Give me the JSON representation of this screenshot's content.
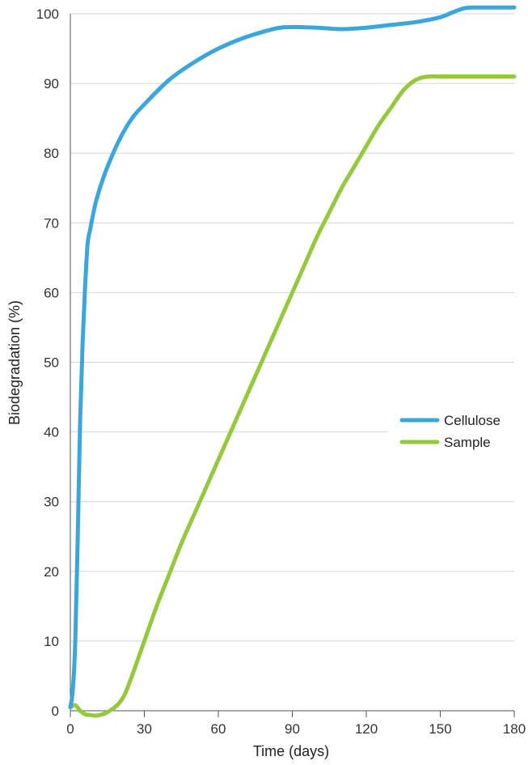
{
  "chart_data": {
    "type": "line",
    "title": "",
    "xlabel": "Time (days)",
    "ylabel": "Biodegradation (%)",
    "xlim": [
      0,
      180
    ],
    "ylim": [
      0,
      100
    ],
    "xticks": [
      0,
      30,
      60,
      90,
      120,
      150,
      180
    ],
    "yticks": [
      0,
      10,
      20,
      30,
      40,
      50,
      60,
      70,
      80,
      90,
      100
    ],
    "grid": "horizontal",
    "legend_position": "right",
    "series": [
      {
        "name": "Cellulose",
        "color": "#3aa6dc",
        "x": [
          0,
          1,
          2,
          3,
          4,
          5,
          6,
          7,
          8,
          10,
          12,
          15,
          20,
          25,
          30,
          40,
          50,
          60,
          70,
          80,
          85,
          90,
          100,
          110,
          120,
          130,
          140,
          150,
          155,
          160,
          165,
          170,
          175,
          180
        ],
        "y": [
          0.5,
          3,
          10,
          25,
          42,
          53,
          61,
          67,
          69,
          72.5,
          75,
          78,
          82,
          85,
          87,
          90.5,
          93,
          95,
          96.5,
          97.6,
          98,
          98.1,
          98,
          97.8,
          98,
          98.4,
          98.8,
          99.5,
          100.2,
          100.8,
          100.9,
          100.9,
          100.9,
          100.9
        ]
      },
      {
        "name": "Sample",
        "color": "#95c93d",
        "x": [
          0,
          2,
          4,
          6,
          8,
          10,
          12,
          14,
          16,
          18,
          20,
          22,
          25,
          30,
          35,
          40,
          45,
          50,
          55,
          60,
          65,
          70,
          75,
          80,
          85,
          90,
          95,
          100,
          105,
          110,
          115,
          120,
          125,
          130,
          135,
          140,
          145,
          150,
          155,
          160,
          165,
          170,
          175,
          180
        ],
        "y": [
          0.5,
          0.8,
          0,
          -0.5,
          -0.6,
          -0.7,
          -0.6,
          -0.4,
          0,
          0.5,
          1.2,
          2.3,
          5,
          10,
          15,
          19.5,
          24,
          28,
          32,
          36,
          40,
          44,
          48,
          52,
          56,
          60,
          64,
          68,
          71.5,
          75,
          78,
          81,
          84,
          86.5,
          89,
          90.5,
          91,
          91,
          91,
          91,
          91,
          91,
          91,
          91
        ]
      }
    ]
  }
}
